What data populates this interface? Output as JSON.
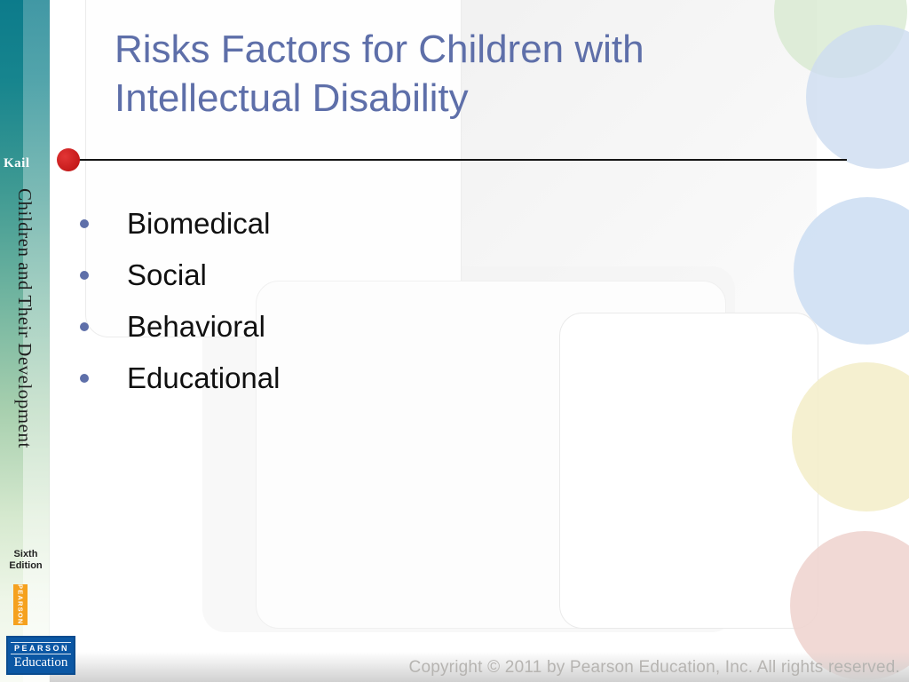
{
  "sidebar": {
    "author": "Kail",
    "book_title": "Children and Their Development",
    "edition": "Sixth Edition",
    "pearson_vertical": "PEARSON",
    "logo": {
      "brand": "PEARSON",
      "division": "Education"
    }
  },
  "slide": {
    "title": "Risks Factors for Children with Intellectual Disability",
    "bullets": [
      "Biomedical",
      "Social",
      "Behavioral",
      "Educational"
    ],
    "footer": "Copyright © 2011 by Pearson Education, Inc. All rights reserved."
  },
  "colors": {
    "title_blue": "#5e6fa9",
    "bullet_marker_blue": "#5e6fa9",
    "accent_red": "#c41616",
    "sidebar_teal": "#0c7b8b",
    "pearson_orange": "#f5a11e",
    "logo_blue": "#0b57a4",
    "footer_gray": "#b6b4b1"
  }
}
